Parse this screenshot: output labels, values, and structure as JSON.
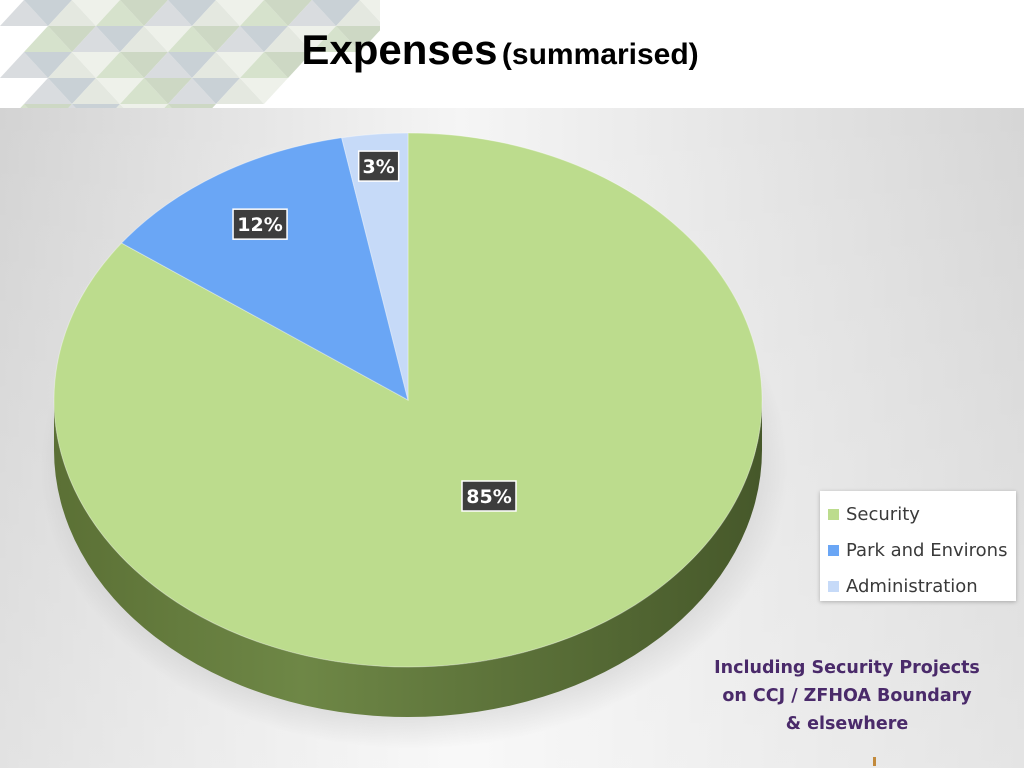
{
  "title": {
    "main": "Expenses",
    "sub": "(summarised)"
  },
  "chart_data": {
    "type": "pie",
    "style": "3d",
    "categories": [
      "Security",
      "Park and Environs",
      "Administration"
    ],
    "values": [
      85,
      12,
      3
    ],
    "data_labels": [
      "85%",
      "12%",
      "3%"
    ],
    "colors": [
      "#bcdc8d",
      "#6aa6f5",
      "#c6daf8"
    ],
    "legend": "right",
    "title": "",
    "xlabel": "",
    "ylabel": ""
  },
  "legend": {
    "items": [
      {
        "label": "Security",
        "color": "#bcdc8d"
      },
      {
        "label": "Park and Environs",
        "color": "#6aa6f5"
      },
      {
        "label": "Administration",
        "color": "#c6daf8"
      }
    ]
  },
  "note": {
    "lines": [
      "Including Security Projects",
      "on CCJ / ZFHOA Boundary",
      "& elsewhere"
    ]
  }
}
